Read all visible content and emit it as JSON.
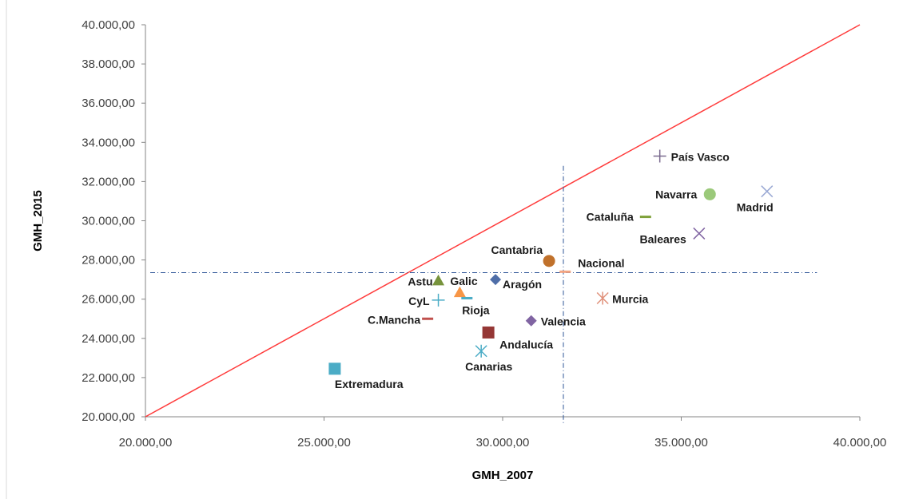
{
  "chart_data": {
    "type": "scatter",
    "xlabel": "GMH_2007",
    "ylabel": "GMH_2015",
    "xlim": [
      20000,
      40000
    ],
    "ylim": [
      20000,
      40000
    ],
    "x_ticks": [
      20000,
      25000,
      30000,
      35000,
      40000
    ],
    "y_ticks": [
      20000,
      22000,
      24000,
      26000,
      28000,
      30000,
      32000,
      34000,
      36000,
      38000,
      40000
    ],
    "x_tick_labels": [
      "20.000,00",
      "25.000,00",
      "30.000,00",
      "35.000,00",
      "40.000,00"
    ],
    "y_tick_labels": [
      "20.000,00",
      "22.000,00",
      "24.000,00",
      "26.000,00",
      "28.000,00",
      "30.000,00",
      "32.000,00",
      "34.000,00",
      "36.000,00",
      "38.000,00",
      "40.000,00"
    ],
    "grid": false,
    "legend": "none",
    "reference_line": {
      "type": "diagonal",
      "from": [
        20000,
        20000
      ],
      "to": [
        40000,
        40000
      ],
      "color": "#ff3b3b"
    },
    "mean_lines": {
      "x": 31700,
      "y": 27350,
      "color": "#2f5597"
    },
    "points": [
      {
        "name": "País Vasco",
        "x": 34400,
        "y": 33300,
        "marker": "plus",
        "color": "#7a6a8f"
      },
      {
        "name": "Navarra",
        "x": 35800,
        "y": 31350,
        "marker": "circle",
        "color": "#9bc97a"
      },
      {
        "name": "Madrid",
        "x": 37400,
        "y": 31500,
        "marker": "x",
        "color": "#9aa9d4"
      },
      {
        "name": "Cataluña",
        "x": 34000,
        "y": 30200,
        "marker": "dash",
        "color": "#7fa13a"
      },
      {
        "name": "Baleares",
        "x": 35500,
        "y": 29350,
        "marker": "x",
        "color": "#8064a2"
      },
      {
        "name": "Cantabria",
        "x": 31300,
        "y": 27950,
        "marker": "circle",
        "color": "#c0712b"
      },
      {
        "name": "Nacional",
        "x": 31750,
        "y": 27400,
        "marker": "dash",
        "color": "#f4a582"
      },
      {
        "name": "Astu",
        "x": 28200,
        "y": 26950,
        "marker": "triangle",
        "color": "#77933c"
      },
      {
        "name": "Galic",
        "x": 28800,
        "y": 26350,
        "marker": "triangle",
        "color": "#f79646"
      },
      {
        "name": "Aragón",
        "x": 29800,
        "y": 27000,
        "marker": "diamond",
        "color": "#4f6ea8"
      },
      {
        "name": "CyL",
        "x": 28200,
        "y": 25950,
        "marker": "plus",
        "color": "#4bacc6"
      },
      {
        "name": "Rioja",
        "x": 29000,
        "y": 26050,
        "marker": "dash",
        "color": "#4bacc6"
      },
      {
        "name": "Murcia",
        "x": 32800,
        "y": 26050,
        "marker": "asterisk",
        "color": "#e0907a"
      },
      {
        "name": "C.Mancha",
        "x": 27900,
        "y": 25000,
        "marker": "dash",
        "color": "#c0504d"
      },
      {
        "name": "Valencia",
        "x": 30800,
        "y": 24900,
        "marker": "diamond",
        "color": "#8064a2"
      },
      {
        "name": "Andalucía",
        "x": 29600,
        "y": 24300,
        "marker": "square",
        "color": "#953735"
      },
      {
        "name": "Canarias",
        "x": 29400,
        "y": 23350,
        "marker": "asterisk",
        "color": "#4bacc6"
      },
      {
        "name": "Extremadura",
        "x": 25300,
        "y": 22450,
        "marker": "square",
        "color": "#4bacc6"
      }
    ]
  }
}
